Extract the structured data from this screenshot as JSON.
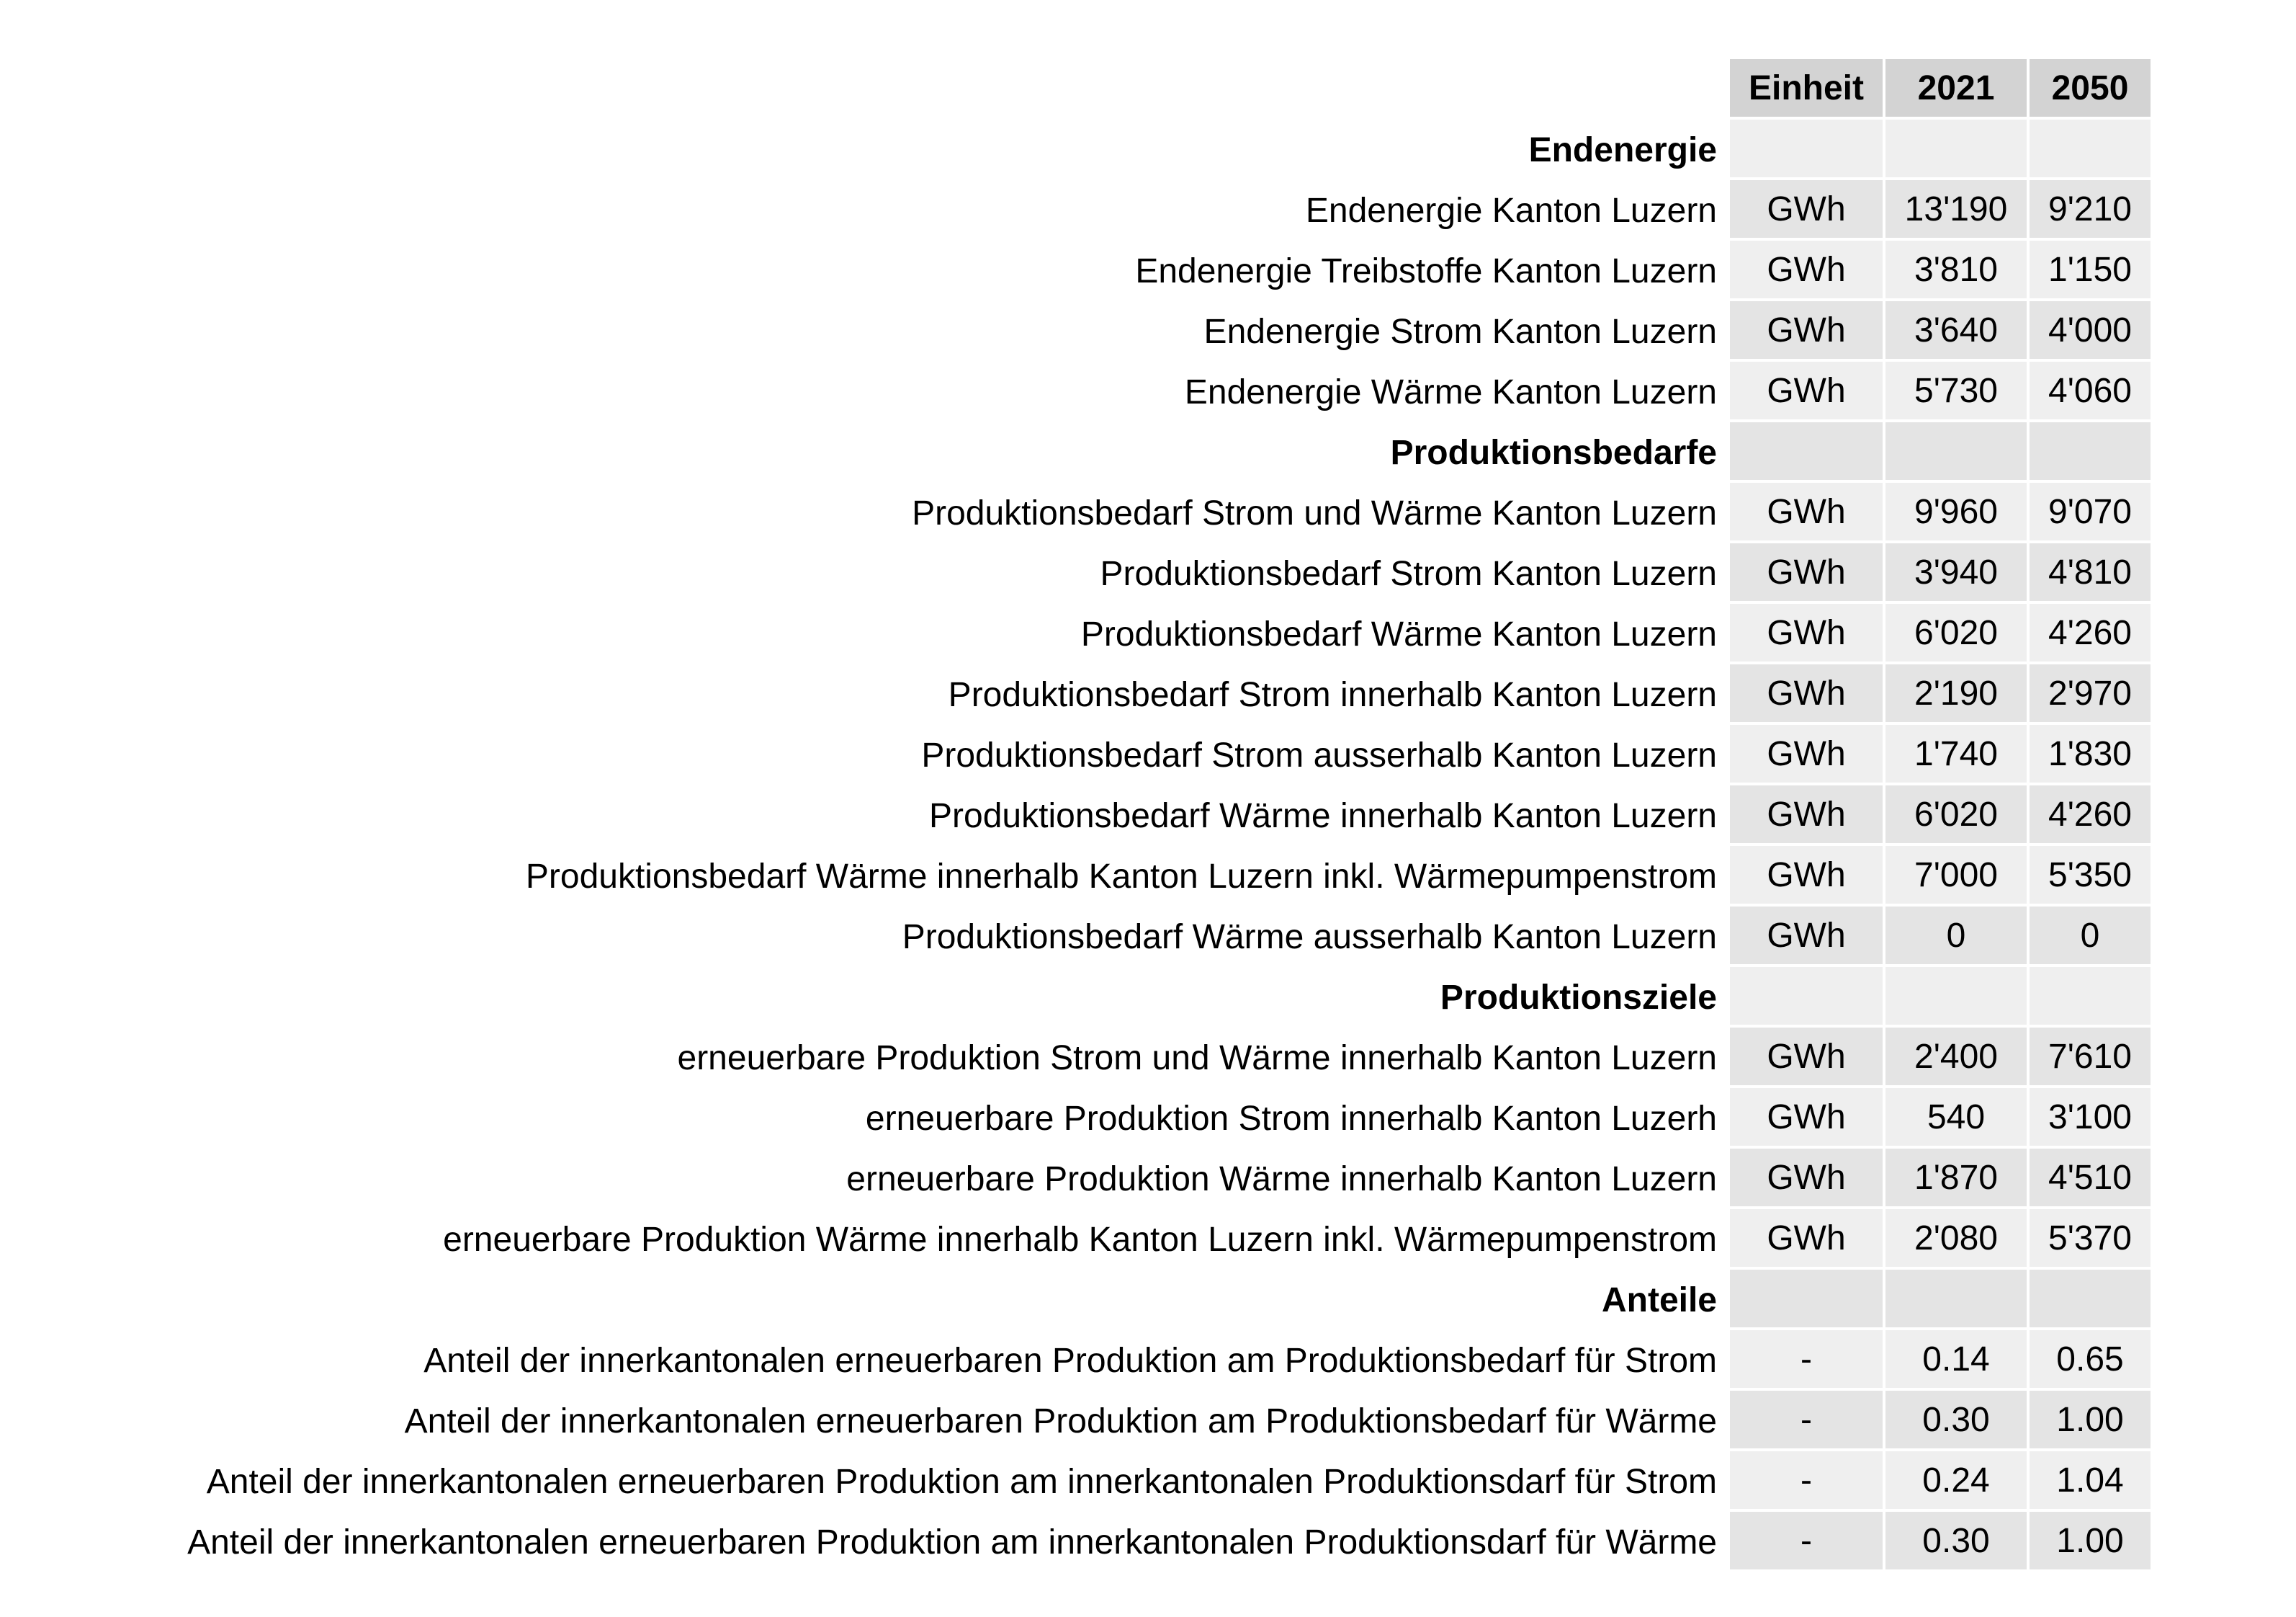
{
  "chart_data": {
    "type": "table",
    "columns": [
      "Einheit",
      "2021",
      "2050"
    ],
    "rows": [
      {
        "label": "Endenergie",
        "section": true,
        "unit": "",
        "v2021": "",
        "v2050": ""
      },
      {
        "label": "Endenergie Kanton Luzern",
        "section": false,
        "unit": "GWh",
        "v2021": "13'190",
        "v2050": "9'210"
      },
      {
        "label": "Endenergie Treibstoffe Kanton Luzern",
        "section": false,
        "unit": "GWh",
        "v2021": "3'810",
        "v2050": "1'150"
      },
      {
        "label": "Endenergie Strom Kanton Luzern",
        "section": false,
        "unit": "GWh",
        "v2021": "3'640",
        "v2050": "4'000"
      },
      {
        "label": "Endenergie Wärme Kanton Luzern",
        "section": false,
        "unit": "GWh",
        "v2021": "5'730",
        "v2050": "4'060"
      },
      {
        "label": "Produktionsbedarfe",
        "section": true,
        "unit": "",
        "v2021": "",
        "v2050": ""
      },
      {
        "label": "Produktionsbedarf Strom und Wärme Kanton Luzern",
        "section": false,
        "unit": "GWh",
        "v2021": "9'960",
        "v2050": "9'070"
      },
      {
        "label": "Produktionsbedarf Strom Kanton Luzern",
        "section": false,
        "unit": "GWh",
        "v2021": "3'940",
        "v2050": "4'810"
      },
      {
        "label": "Produktionsbedarf Wärme Kanton Luzern",
        "section": false,
        "unit": "GWh",
        "v2021": "6'020",
        "v2050": "4'260"
      },
      {
        "label": "Produktionsbedarf Strom innerhalb Kanton Luzern",
        "section": false,
        "unit": "GWh",
        "v2021": "2'190",
        "v2050": "2'970"
      },
      {
        "label": "Produktionsbedarf Strom ausserhalb Kanton Luzern",
        "section": false,
        "unit": "GWh",
        "v2021": "1'740",
        "v2050": "1'830"
      },
      {
        "label": "Produktionsbedarf Wärme innerhalb Kanton Luzern",
        "section": false,
        "unit": "GWh",
        "v2021": "6'020",
        "v2050": "4'260"
      },
      {
        "label": "Produktionsbedarf Wärme innerhalb Kanton Luzern inkl. Wärmepumpenstrom",
        "section": false,
        "unit": "GWh",
        "v2021": "7'000",
        "v2050": "5'350"
      },
      {
        "label": "Produktionsbedarf Wärme ausserhalb Kanton Luzern",
        "section": false,
        "unit": "GWh",
        "v2021": "0",
        "v2050": "0"
      },
      {
        "label": "Produktionsziele",
        "section": true,
        "unit": "",
        "v2021": "",
        "v2050": ""
      },
      {
        "label": "erneuerbare Produktion Strom und Wärme innerhalb Kanton Luzern",
        "section": false,
        "unit": "GWh",
        "v2021": "2'400",
        "v2050": "7'610"
      },
      {
        "label": "erneuerbare Produktion Strom innerhalb Kanton Luzerh",
        "section": false,
        "unit": "GWh",
        "v2021": "540",
        "v2050": "3'100"
      },
      {
        "label": "erneuerbare Produktion Wärme innerhalb Kanton Luzern",
        "section": false,
        "unit": "GWh",
        "v2021": "1'870",
        "v2050": "4'510"
      },
      {
        "label": "erneuerbare Produktion Wärme innerhalb Kanton Luzern inkl. Wärmepumpenstrom",
        "section": false,
        "unit": "GWh",
        "v2021": "2'080",
        "v2050": "5'370"
      },
      {
        "label": "Anteile",
        "section": true,
        "unit": "",
        "v2021": "",
        "v2050": ""
      },
      {
        "label": "Anteil der innerkantonalen erneuerbaren Produktion am Produktionsbedarf für Strom",
        "section": false,
        "unit": "-",
        "v2021": "0.14",
        "v2050": "0.65"
      },
      {
        "label": "Anteil der innerkantonalen erneuerbaren Produktion am Produktionsbedarf für Wärme",
        "section": false,
        "unit": "-",
        "v2021": "0.30",
        "v2050": "1.00"
      },
      {
        "label": "Anteil der innerkantonalen erneuerbaren Produktion am innerkantonalen Produktionsdarf für Strom",
        "section": false,
        "unit": "-",
        "v2021": "0.24",
        "v2050": "1.04"
      },
      {
        "label": "Anteil der innerkantonalen erneuerbaren Produktion am innerkantonalen Produktionsdarf für Wärme",
        "section": false,
        "unit": "-",
        "v2021": "0.30",
        "v2050": "1.00"
      }
    ]
  },
  "colors": {
    "header_bg": "#d3d3d3",
    "row_dark": "#e4e4e4",
    "row_light": "#efefef"
  }
}
